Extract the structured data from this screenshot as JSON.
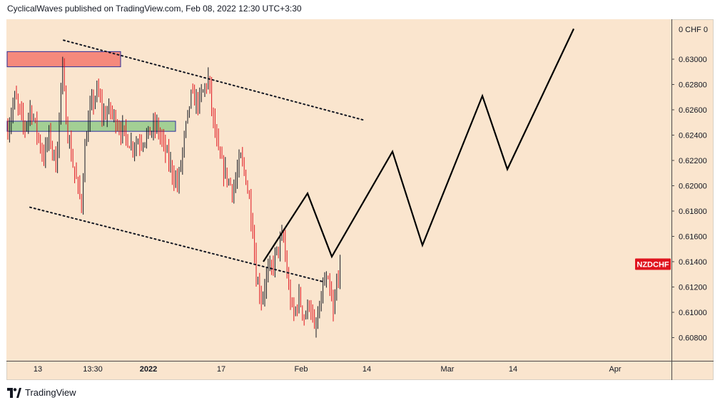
{
  "header": {
    "text": "CyclicalWaves published on TradingView.com, Feb 08, 2022 12:30 UTC+3:30"
  },
  "footer": {
    "brand": "TradingView",
    "logo_icon": "tradingview-logo-icon"
  },
  "colors": {
    "background": "#fae5ce",
    "candle_up": "#131722",
    "candle_down": "#e0141e",
    "supply_zone": "#f5897c",
    "demand_zone": "#a3cf94",
    "zone_border": "#2a2e9e",
    "badge": "#e0141e",
    "projection": "#000000"
  },
  "chart_data": {
    "type": "candlestick",
    "symbol_badge": "NZDCHF",
    "y_axis": {
      "unit_label": "0 CHF 0",
      "tick_labels": [
        "0.63000",
        "0.62800",
        "0.62600",
        "0.62400",
        "0.62200",
        "0.62000",
        "0.61800",
        "0.61600",
        "0.61400",
        "0.61200",
        "0.61000",
        "0.60800"
      ],
      "range": [
        0.606,
        0.6322
      ]
    },
    "x_axis": {
      "tick_labels": [
        "13",
        "13:30",
        "2022",
        "17",
        "Feb",
        "14",
        "Mar",
        "14",
        "Apr"
      ],
      "bold_labels": [
        "2022"
      ]
    },
    "price_summary": {
      "start": 0.6245,
      "first_peak": 0.6295,
      "box_high": 0.6285,
      "low": 0.6078,
      "last": 0.6138
    },
    "zones": [
      {
        "name": "supply-zone",
        "low": 0.6294,
        "high": 0.6306
      },
      {
        "name": "demand-zone",
        "low": 0.6243,
        "high": 0.6251
      }
    ],
    "trendlines": [
      {
        "name": "upper-channel-line",
        "style": "dotted",
        "from": 0.6315,
        "to": 0.6252
      },
      {
        "name": "lower-channel-line",
        "style": "dotted",
        "from": 0.6183,
        "to": 0.6124
      }
    ],
    "projection_path": [
      0.614,
      0.6194,
      0.6144,
      0.6227,
      0.6153,
      0.6271,
      0.6213,
      0.6324
    ]
  }
}
